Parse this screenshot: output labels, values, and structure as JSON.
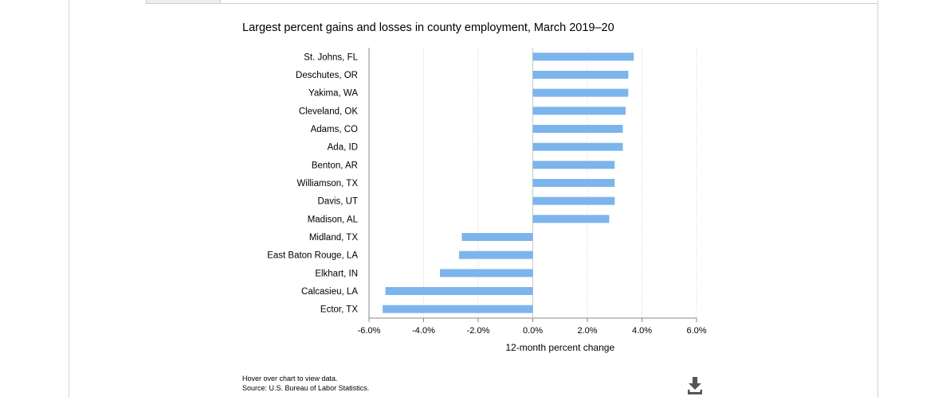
{
  "chart_data": {
    "type": "bar",
    "orientation": "horizontal",
    "title": "Largest percent gains and losses in county employment, March 2019–20",
    "xlabel": "12-month percent change",
    "ylabel": "",
    "xlim": [
      -6.0,
      6.0
    ],
    "xticks": [
      -6.0,
      -4.0,
      -2.0,
      0.0,
      2.0,
      4.0,
      6.0
    ],
    "xtick_labels": [
      "-6.0%",
      "-4.0%",
      "-2.0%",
      "0.0%",
      "2.0%",
      "4.0%",
      "6.0%"
    ],
    "grid": "vertical dotted",
    "bar_color": "#7cb5ec",
    "categories": [
      "St. Johns, FL",
      "Deschutes, OR",
      "Yakima, WA",
      "Cleveland, OK",
      "Adams, CO",
      "Ada, ID",
      "Benton, AR",
      "Williamson, TX",
      "Davis, UT",
      "Madison, AL",
      "Midland, TX",
      "East Baton Rouge, LA",
      "Elkhart, IN",
      "Calcasieu, LA",
      "Ector, TX"
    ],
    "values": [
      3.7,
      3.5,
      3.5,
      3.4,
      3.3,
      3.3,
      3.0,
      3.0,
      3.0,
      2.8,
      -2.6,
      -2.7,
      -3.4,
      -5.4,
      -5.5
    ]
  },
  "notes": {
    "hover": "Hover over chart to view data.",
    "source": "Source: U.S. Bureau of Labor Statistics."
  },
  "icons": {
    "download": "download-icon"
  }
}
